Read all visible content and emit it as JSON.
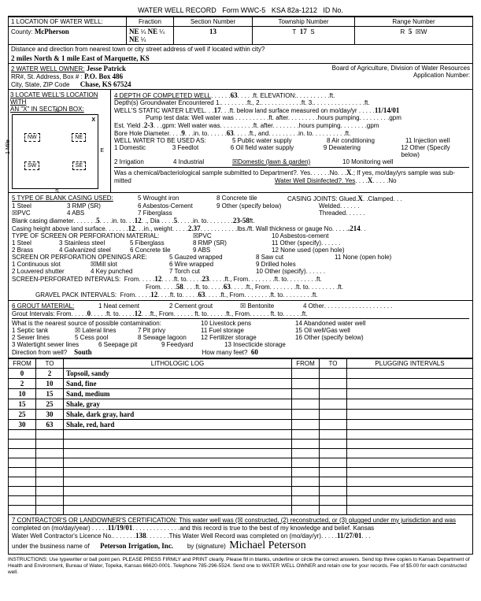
{
  "header": {
    "title": "WATER WELL RECORD",
    "form": "Form WWC-5",
    "ksa": "KSA 82a-1212",
    "id": "ID No."
  },
  "s1": {
    "title": "1 LOCATION OF WATER WELL:",
    "county_lbl": "County:",
    "county": "McPherson",
    "frac_lbl": "Fraction",
    "ne": "NE",
    "q": "¼",
    "sec_lbl": "Section Number",
    "sec": "13",
    "twp_lbl": "Township Number",
    "twp_t": "T",
    "twp": "17",
    "twp_s": "S",
    "rng_lbl": "Range Number",
    "rng_r": "R",
    "rng": "5",
    "rng_w": "☒W",
    "dist_lbl": "Distance and direction from nearest town or city street address of well if located within city?",
    "dist": "2 miles North & 1 mile East of Marquette, KS"
  },
  "s2": {
    "title": "2 WATER WELL OWNER:",
    "name": "Jesse Patrick",
    "addr_lbl": "RR#, St. Address, Box #  :",
    "addr": "P.O. Box 486",
    "csz_lbl": "City, State, ZIP Code",
    "csz": "Chase, KS  67524",
    "board": "Board of Agriculture, Division of Water Resources",
    "app": "Application Number:"
  },
  "s3": {
    "title": "3 LOCATE WELL'S LOCATION WITH",
    "sub": "AN \"X\" IN SECTION BOX:",
    "nw": "NW",
    "ne": "NE",
    "sw": "SW",
    "se": "SE",
    "n": "N",
    "s": "S",
    "e": "E",
    "w": "W",
    "mile": "1 Mile"
  },
  "s4": {
    "title": "4  DEPTH OF COMPLETED WELL",
    "depth": "63",
    "elev": "ft. ELEVATION:",
    "gw": "Depth(s) Groundwater Encountered   1.",
    "gw2": "ft., 2.",
    "gw3": "ft. 3.",
    "gwend": "ft.",
    "static": "WELL'S STATIC WATER LEVEL",
    "static_v": "17",
    "static_txt": "ft. below land surface measured on mo/day/yr",
    "static_date": "11/14/01",
    "pump": "Pump test data:  Well water was",
    "pump2": "ft. after",
    "pump3": "hours pumping",
    "pump4": "gpm",
    "est": "Est. Yield",
    "est_v": "2-3",
    "est_u": "gpm: Well water was",
    "est2": "ft. after",
    "est3": "hours pumping",
    "est4": "gpm",
    "bore": "Bore Hole Diameter",
    "bore_v": "9",
    "bore_in": "in. to",
    "bore_d": "63",
    "bore_ft": "ft., and",
    "bore_in2": "in. to",
    "bore_ft2": "ft.",
    "use": "WELL WATER TO BE USED AS:",
    "u5": "5 Public water supply",
    "u8": "8 Air conditioning",
    "u11": "11 Injection well",
    "u1": "1 Domestic",
    "u3": "3 Feedlot",
    "u6": "6 Oil field water supply",
    "u9": "9 Dewatering",
    "u12": "12 Other (Specify below)",
    "u2": "2 Irrigation",
    "u4": "4 Industrial",
    "u7": "☒Domestic (lawn & garden)",
    "u10": "10 Monitoring well",
    "chem": "Was a chemical/bacteriological sample submitted to Department?. Yes",
    "chem_no": "No",
    "chem_x": "X",
    "chem_if": "; If yes, mo/day/yrs sample was sub-",
    "mitted": "mitted",
    "disinf": "Water Well Disinfected?. Yes",
    "disinf_x": "X",
    "disinf_no": "No"
  },
  "s5": {
    "title": "5 TYPE OF BLANK CASING USED:",
    "w": "5 Wrought iron",
    "ct": "8 Concrete tile",
    "os": "9 Other (specify below)",
    "joints": "CASING JOINTS: Glued",
    "jx": "X",
    "clamp": "Clamped",
    "steel": "1 Steel",
    "rmp": "3 RMP (SR)",
    "ac": "6 Asbestos-Cement",
    "weld": "Welded",
    "pvc": "☒PVC",
    "abs": "4 ABS",
    "fg": "7 Fiberglass",
    "thr": "Threaded",
    "bcd": "Blank casing diameter",
    "bcd1": "5",
    "bcd_in": "in. to",
    "bcd2": "12",
    "bcd_dia": "Dia",
    "bcd3": "5",
    "bcd_into": "in. to",
    "bcd4": "23-58",
    "bcd_ft": "ft.",
    "cha": "Casing height above land surface",
    "cha_v": "12",
    "cha_in": "in., weight",
    "cha_w": "2.37",
    "cha_lbs": "lbs./ft. Wall thickness or gauge No",
    "cha_g": ".214",
    "perf": "TYPE OF SCREEN OR PERFORATION MATERIAL:",
    "pvc2": "☒PVC",
    "ac2": "10 Asbestos-cement",
    "p1": "1 Steel",
    "p3": "3 Stainless steel",
    "p5": "5 Fiberglass",
    "p8": "8 RMP (SR)",
    "p11": "11 Other (specify)",
    "p2": "2 Brass",
    "p4": "4 Galvanized steel",
    "p6": "6 Concrete tile",
    "p9": "9 ABS",
    "p12": "12 None used (open hole)",
    "open": "SCREEN OR PERFORATION OPENINGS ARE:",
    "o5": "5 Gauzed wrapped",
    "o8": "8 Saw cut",
    "o11": "11 None (open hole)",
    "o1": "1 Continuous slot",
    "o3": "☒Mill slot",
    "o6": "6 Wire wrapped",
    "o9": "9 Drilled holes",
    "o2": "2 Louvered shutter",
    "o4": "4 Key punched",
    "o7": "7 Torch cut",
    "o10": "10 Other (specify)",
    "spi": "SCREEN-PERFORATED INTERVALS:",
    "from": "From",
    "to": "ft. to",
    "ft": "ft., From",
    "ft2": "ft.",
    "spi1f": "12",
    "spi1t": "23",
    "spi2f": "58",
    "spi2t": "63",
    "gpi": "GRAVEL PACK INTERVALS:",
    "gpi1f": "12",
    "gpi1t": "63"
  },
  "s6": {
    "title": "6 GROUT MATERIAL:",
    "nc": "1 Neat cement",
    "cg": "2 Cement grout",
    "bent": "☒ Bentonite",
    "oth": "4 Other",
    "gi": "Grout Intervals:  From",
    "gi1": "0",
    "gi_to": "ft. to",
    "gi2": "12",
    "gi_ft": "ft., From",
    "gi_ft2": "ft., From",
    "gi_ft3": "ft.",
    "contam": "What is the nearest source of possible contamination:",
    "c10": "10 Livestock pens",
    "c14": "14 Abandoned water well",
    "c1": "1 Septic tank",
    "c4": "☒ Lateral lines",
    "c7": "7 Pit privy",
    "c11": "11 Fuel storage",
    "c15": "15 Oil well/Gas well",
    "c2": "2 Sewer lines",
    "c5": "5 Cess pool",
    "c8": "8 Sewage lagoon",
    "c12": "12 Fertilizer storage",
    "c16": "16 Other (specify below)",
    "c3": "3 Watertight sewer lines",
    "c6": "6 Seepage pit",
    "c9": "9 Feedyard",
    "c13": "13 Insecticide storage",
    "dir": "Direction from well?",
    "dir_v": "South",
    "feet": "How many feet?",
    "feet_v": "60"
  },
  "log": {
    "h1": "FROM",
    "h2": "TO",
    "h3": "LITHOLOGIC LOG",
    "h4": "FROM",
    "h5": "TO",
    "h6": "PLUGGING INTERVALS",
    "rows": [
      {
        "f": "0",
        "t": "2",
        "d": "Topsoil, sandy"
      },
      {
        "f": "2",
        "t": "10",
        "d": "Sand, fine"
      },
      {
        "f": "10",
        "t": "15",
        "d": "Sand, medium"
      },
      {
        "f": "15",
        "t": "25",
        "d": "Shale, gray"
      },
      {
        "f": "25",
        "t": "30",
        "d": "Shale, dark gray, hard"
      },
      {
        "f": "30",
        "t": "63",
        "d": "Shale, red, hard"
      }
    ]
  },
  "s7": {
    "title": "7 CONTRACTOR'S OR LANDOWNER'S CERTIFICATION: This water well was  (☒ constructed, (2) reconstructed, or (3) plugged under my jurisdiction and was",
    "comp": "completed on (mo/day/year)",
    "comp_v": "11/19/01",
    "rec": "and this record is true to the best of my knowledge and belief. Kansas",
    "lic": "Water Well Contractor's Licence No.",
    "lic_v": "138",
    "wwr": "This Water Well Record was completed on (mo/day/yr)",
    "wwr_v": "11/27/01",
    "bus": "under the business name of",
    "bus_v": "Peterson Irrigation, Inc.",
    "by": "by  (signature)",
    "sig": "Michael Peterson"
  },
  "inst": "INSTRUCTIONS: Use typewriter or ball point pen. PLEASE PRESS FIRMLY and PRINT clearly. Please fill in blanks, underline or circle the correct answers. Send top three copies to Kansas Department of Health and Environment, Bureau of Water, Topeka, Kansas 66620-0001. Telephone 785-296-5524. Send one to WATER WELL OWNER and retain one for your records. Fee of $5.00 for each constructed well."
}
